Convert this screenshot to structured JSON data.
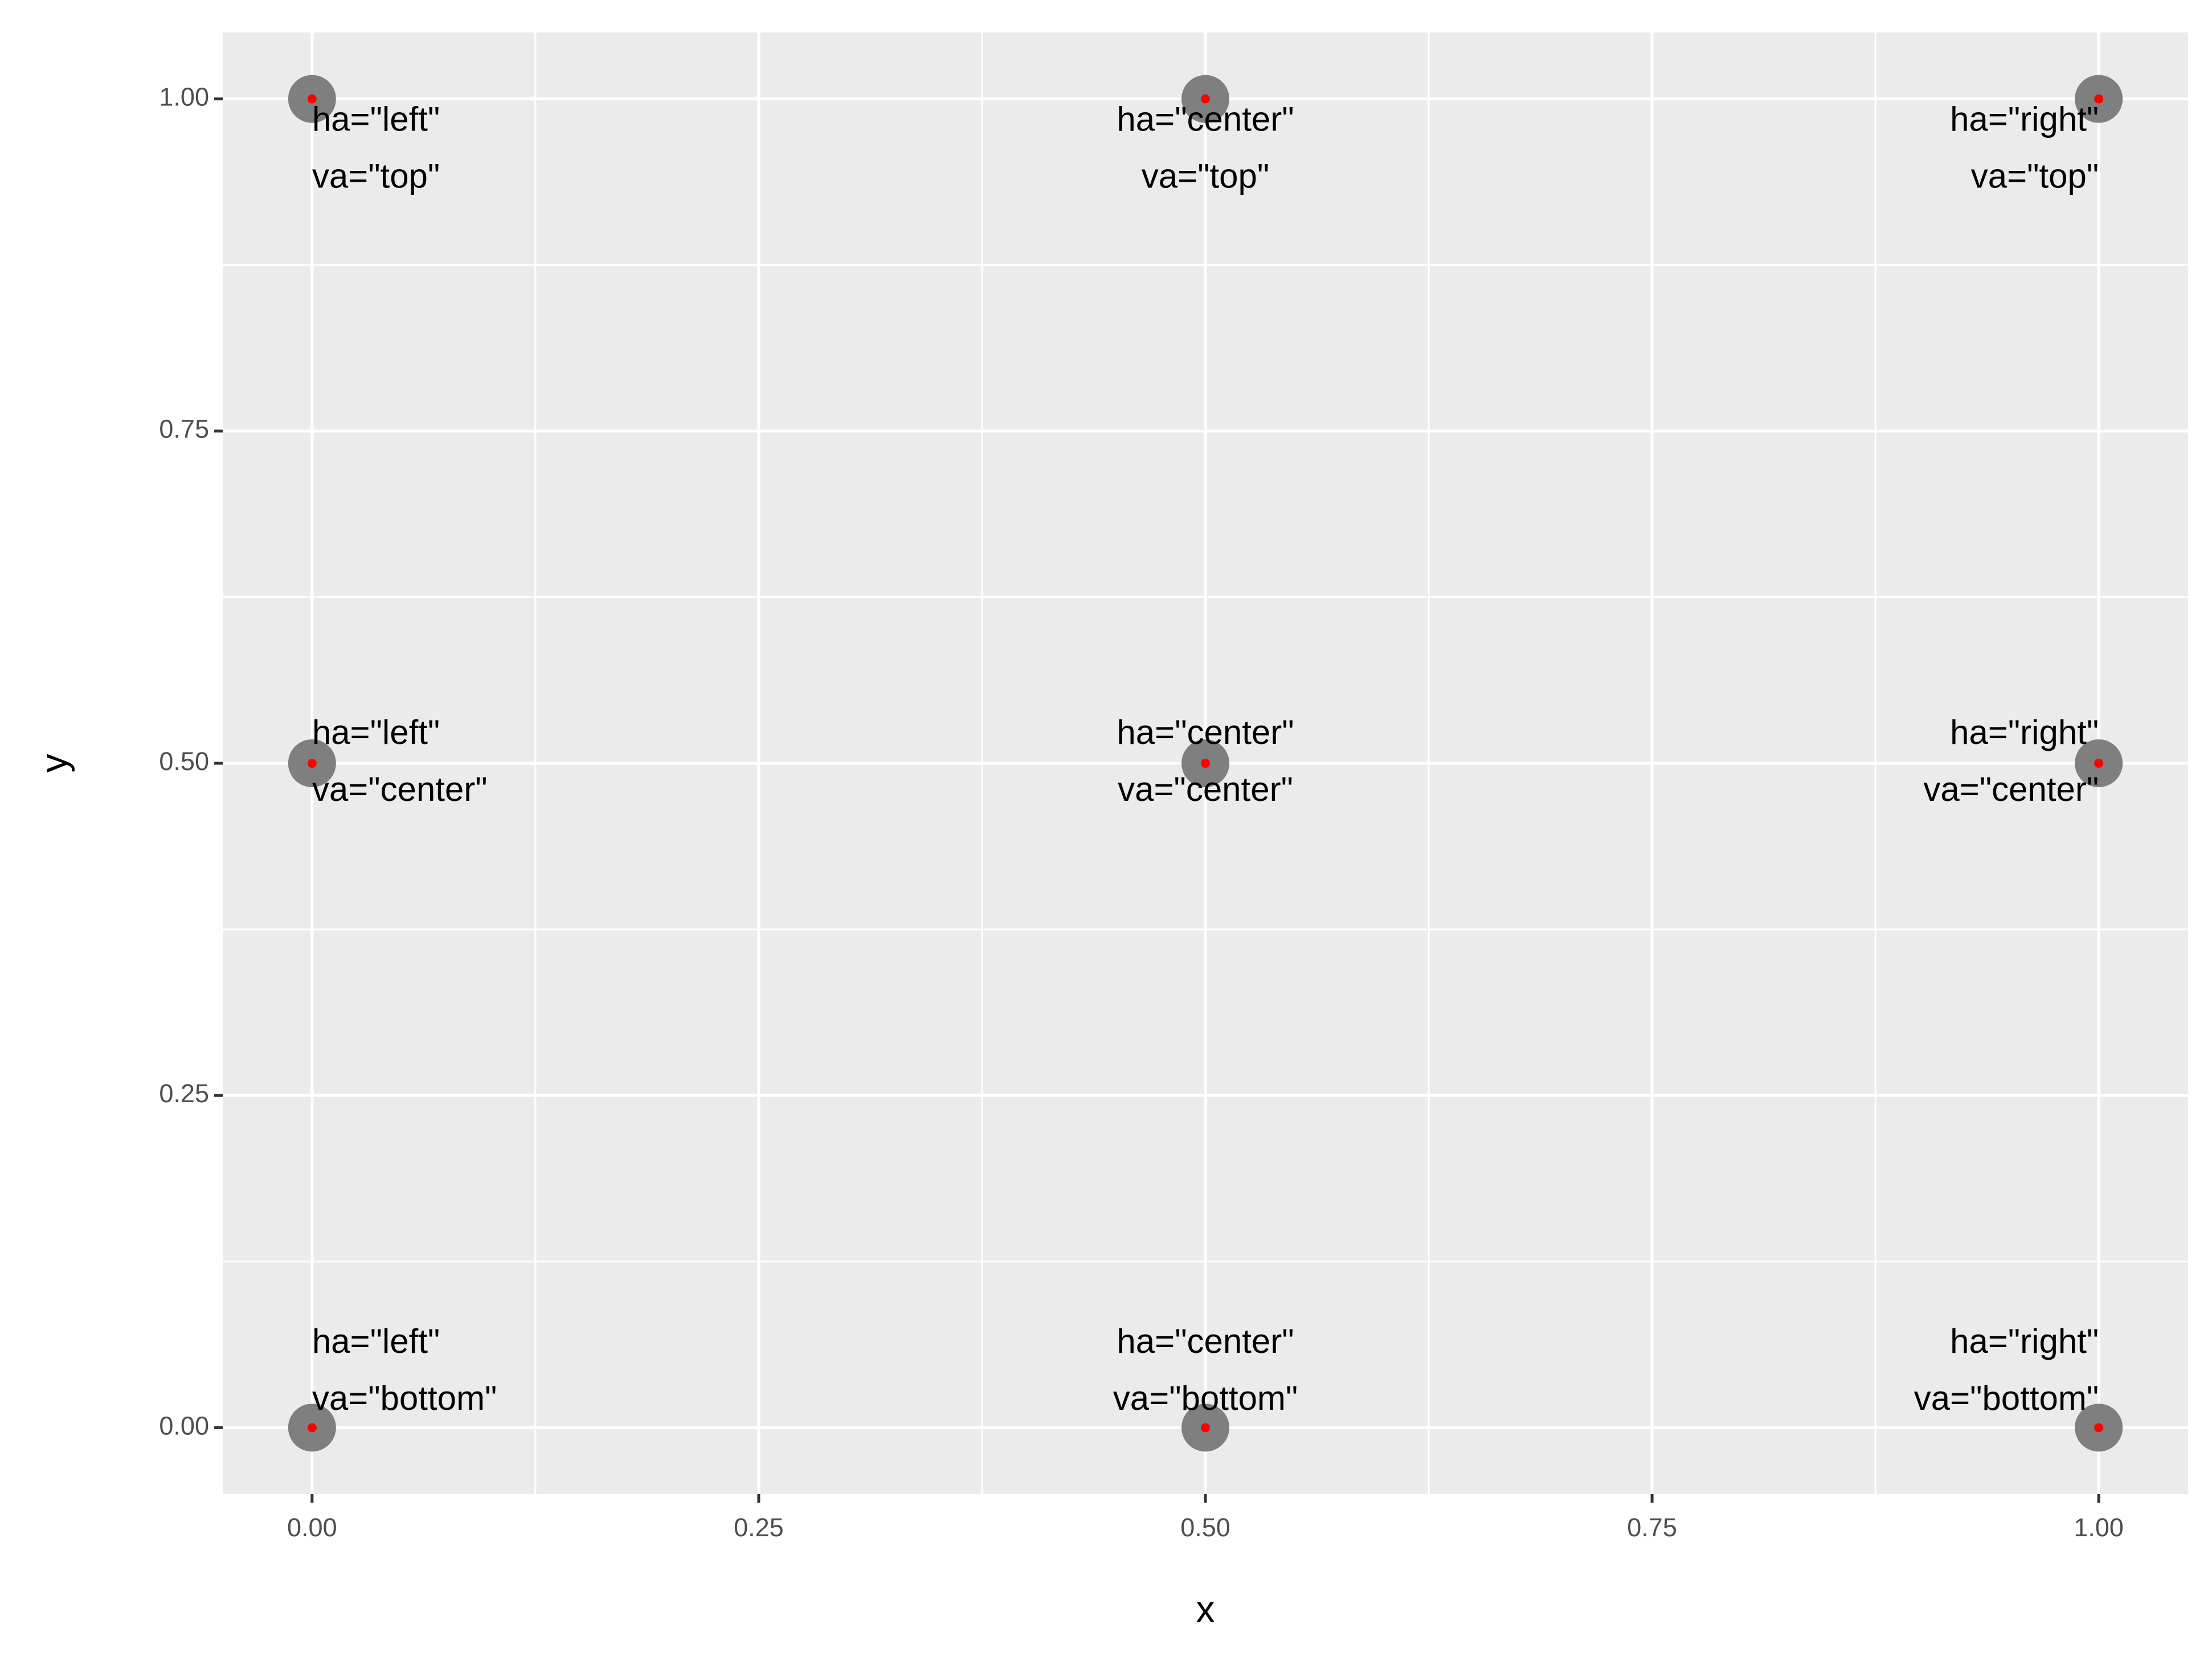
{
  "chart_data": {
    "type": "scatter",
    "x": [
      0,
      0.5,
      1,
      0,
      0.5,
      1,
      0,
      0.5,
      1
    ],
    "y": [
      1,
      1,
      1,
      0.5,
      0.5,
      0.5,
      0,
      0,
      0
    ],
    "labels": [
      [
        "ha=\"left\"",
        "va=\"top\""
      ],
      [
        "ha=\"center\"",
        "va=\"top\""
      ],
      [
        "ha=\"right\"",
        "va=\"top\""
      ],
      [
        "ha=\"left\"",
        "va=\"center\""
      ],
      [
        "ha=\"center\"",
        "va=\"center\""
      ],
      [
        "ha=\"right\"",
        "va=\"center\""
      ],
      [
        "ha=\"left\"",
        "va=\"bottom\""
      ],
      [
        "ha=\"center\"",
        "va=\"bottom\""
      ],
      [
        "ha=\"right\"",
        "va=\"bottom\""
      ]
    ],
    "label_ha": [
      "left",
      "center",
      "right",
      "left",
      "center",
      "right",
      "left",
      "center",
      "right"
    ],
    "label_va": [
      "top",
      "top",
      "top",
      "center",
      "center",
      "center",
      "bottom",
      "bottom",
      "bottom"
    ],
    "color": "#7f7f7f",
    "inner_color": "#ff0000",
    "xlabel": "x",
    "ylabel": "y",
    "xlim": [
      -0.05,
      1.05
    ],
    "ylim": [
      -0.05,
      1.05
    ],
    "xticks": [
      {
        "value": 0,
        "label": "0.00"
      },
      {
        "value": 0.25,
        "label": "0.25"
      },
      {
        "value": 0.5,
        "label": "0.50"
      },
      {
        "value": 0.75,
        "label": "0.75"
      },
      {
        "value": 1,
        "label": "1.00"
      }
    ],
    "yticks": [
      {
        "value": 0,
        "label": "0.00"
      },
      {
        "value": 0.25,
        "label": "0.25"
      },
      {
        "value": 0.5,
        "label": "0.50"
      },
      {
        "value": 0.75,
        "label": "0.75"
      },
      {
        "value": 1,
        "label": "1.00"
      }
    ],
    "grid": true
  }
}
